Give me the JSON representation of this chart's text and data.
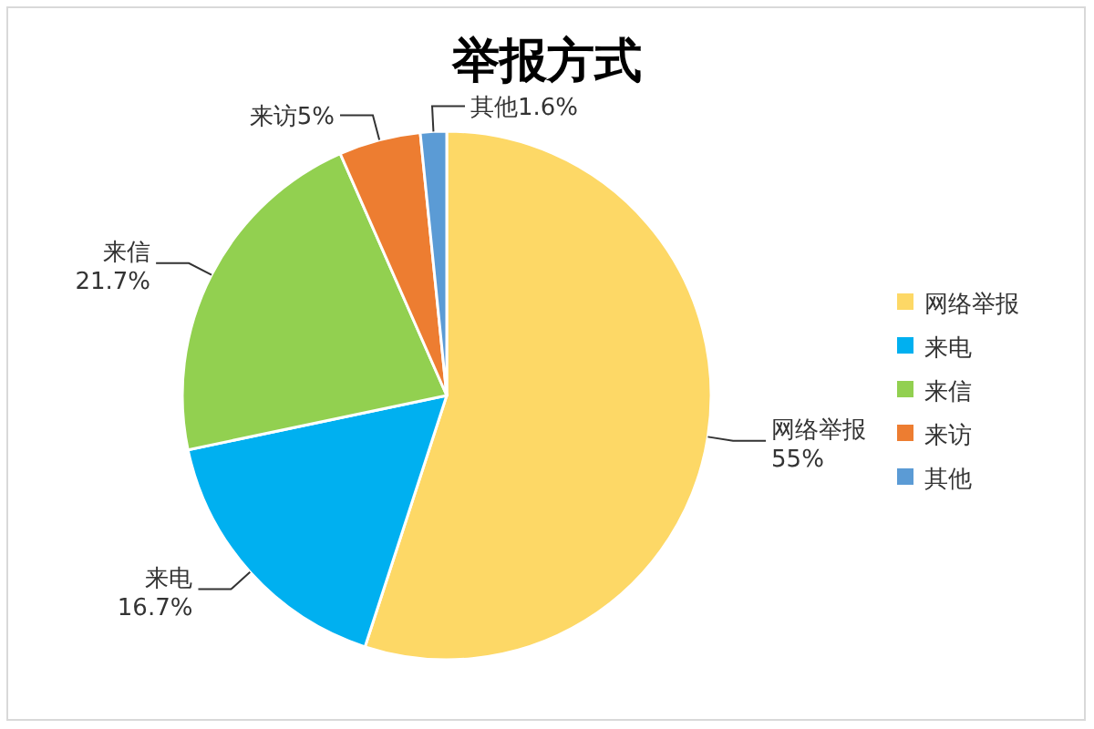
{
  "chart_data": {
    "type": "pie",
    "title": "举报方式",
    "categories": [
      "网络举报",
      "来电",
      "来信",
      "来访",
      "其他"
    ],
    "values": [
      55,
      16.7,
      21.7,
      5,
      1.6
    ],
    "colors": [
      "#fdd866",
      "#00b0f0",
      "#92d050",
      "#ed7d31",
      "#5b9bd5"
    ],
    "value_labels": [
      "55%",
      "16.7%",
      "21.7%",
      "5%",
      "1.6%"
    ],
    "legend": "right"
  }
}
